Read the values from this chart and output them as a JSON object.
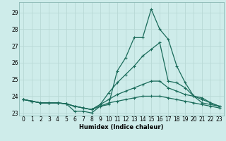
{
  "xlabel": "Humidex (Indice chaleur)",
  "background_color": "#ceecea",
  "grid_color": "#b8d8d5",
  "line_color": "#1a6b5a",
  "x": [
    0,
    1,
    2,
    3,
    4,
    5,
    6,
    7,
    8,
    9,
    10,
    11,
    12,
    13,
    14,
    15,
    16,
    17,
    18,
    19,
    20,
    21,
    22,
    23
  ],
  "lines": [
    [
      23.8,
      23.7,
      23.6,
      23.6,
      23.6,
      23.55,
      23.1,
      23.1,
      23.0,
      23.4,
      23.5,
      25.5,
      26.3,
      27.5,
      27.5,
      29.2,
      28.0,
      27.4,
      25.8,
      24.8,
      24.0,
      23.6,
      23.5,
      23.4
    ],
    [
      23.8,
      23.7,
      23.6,
      23.6,
      23.6,
      23.55,
      23.4,
      23.3,
      23.2,
      23.5,
      24.2,
      24.8,
      25.3,
      25.8,
      26.4,
      26.8,
      27.2,
      24.9,
      24.8,
      24.5,
      24.0,
      23.9,
      23.6,
      23.4
    ],
    [
      23.8,
      23.7,
      23.6,
      23.6,
      23.6,
      23.55,
      23.4,
      23.3,
      23.2,
      23.5,
      23.8,
      24.1,
      24.3,
      24.5,
      24.7,
      24.9,
      24.9,
      24.5,
      24.3,
      24.1,
      24.0,
      23.8,
      23.6,
      23.4
    ],
    [
      23.8,
      23.7,
      23.6,
      23.6,
      23.6,
      23.55,
      23.4,
      23.3,
      23.2,
      23.4,
      23.6,
      23.7,
      23.8,
      23.9,
      24.0,
      24.0,
      24.0,
      23.9,
      23.8,
      23.7,
      23.6,
      23.5,
      23.4,
      23.3
    ]
  ],
  "ylim": [
    22.85,
    29.6
  ],
  "yticks": [
    23,
    24,
    25,
    26,
    27,
    28,
    29
  ],
  "xticks": [
    0,
    1,
    2,
    3,
    4,
    5,
    6,
    7,
    8,
    9,
    10,
    11,
    12,
    13,
    14,
    15,
    16,
    17,
    18,
    19,
    20,
    21,
    22,
    23
  ]
}
